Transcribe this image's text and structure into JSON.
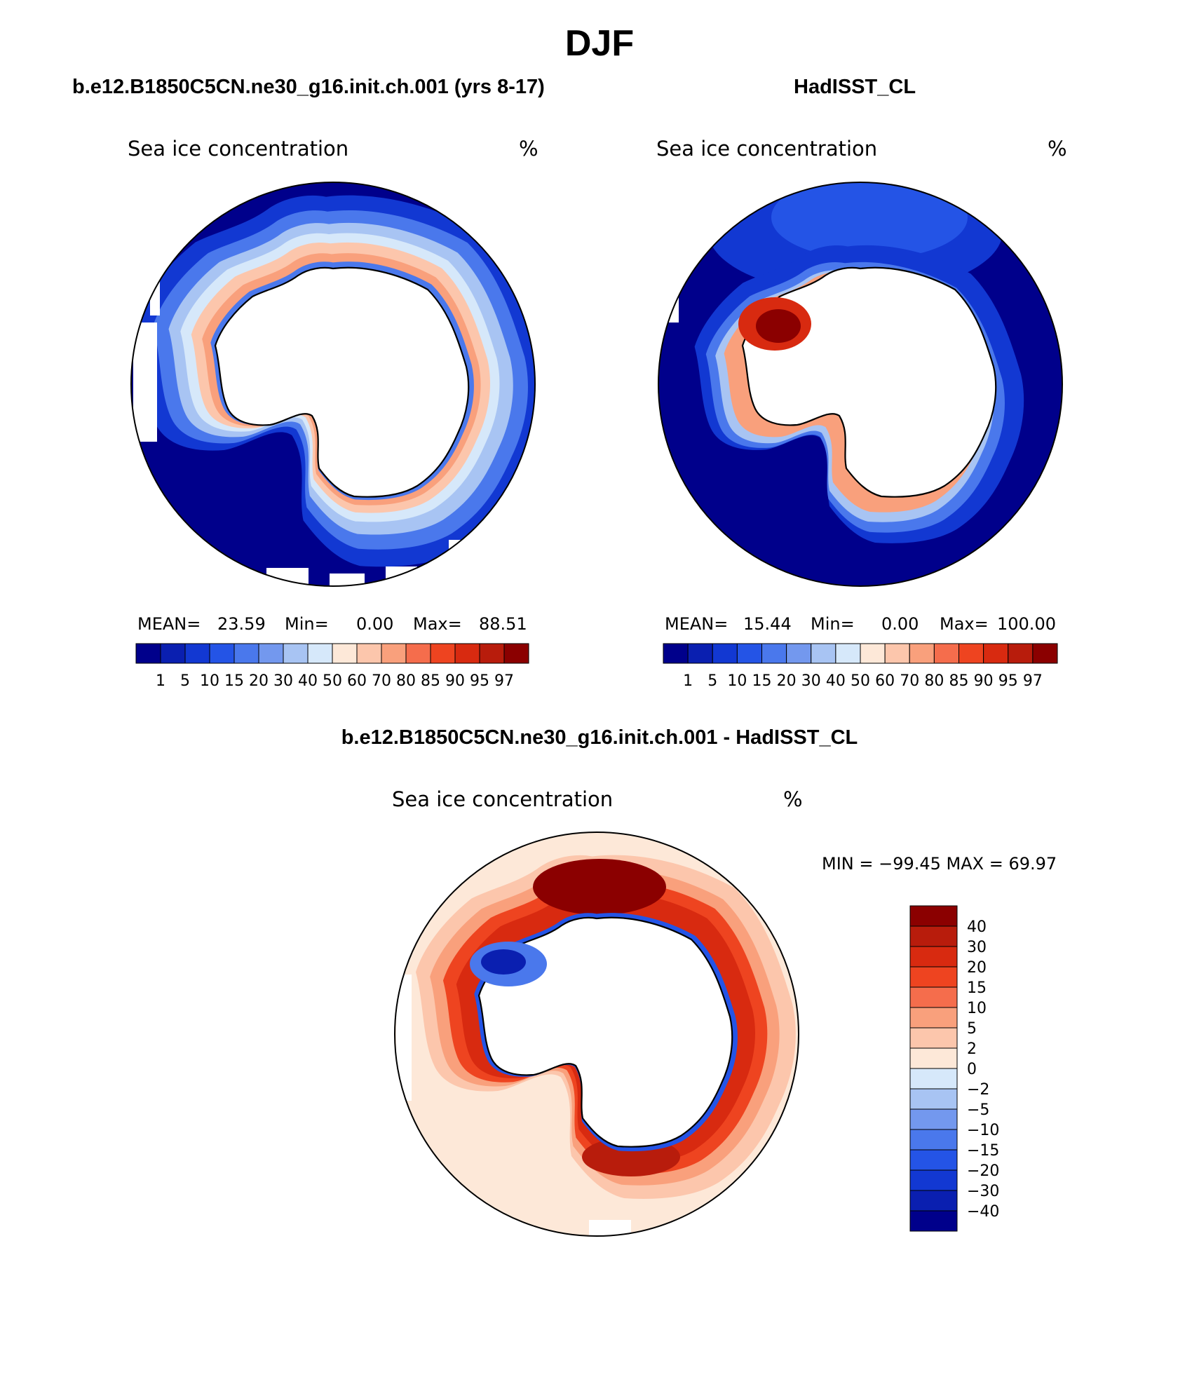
{
  "figure": {
    "season": "DJF",
    "case_title": "b.e12.B1850C5CN.ne30_g16.init.ch.001 (yrs 8-17)",
    "obs_title": "HadISST_CL",
    "diff_title": "b.e12.B1850C5CN.ne30_g16.init.ch.001 - HadISST_CL"
  },
  "panels": {
    "model": {
      "variable": "Sea ice concentration",
      "units": "%",
      "stats": {
        "mean_label": "MEAN=",
        "mean": "23.59",
        "min_label": "Min=",
        "min": "0.00",
        "max_label": "Max=",
        "max": "88.51"
      }
    },
    "obs": {
      "variable": "Sea ice concentration",
      "units": "%",
      "stats": {
        "mean_label": "MEAN=",
        "mean": "15.44",
        "min_label": "Min=",
        "min": "0.00",
        "max_label": "Max=",
        "max": "100.00"
      }
    },
    "diff": {
      "variable": "Sea ice concentration",
      "units": "%",
      "minmax": "MIN = −99.45 MAX =   69.97"
    }
  },
  "colorbars": {
    "concentration": {
      "levels": [
        "1",
        "5",
        "10",
        "15",
        "20",
        "30",
        "40",
        "50",
        "60",
        "70",
        "80",
        "85",
        "90",
        "95",
        "97"
      ],
      "colors": [
        "#00008b",
        "#0a1fb0",
        "#1238d2",
        "#2454e6",
        "#4a78ec",
        "#7398ee",
        "#a8c4f3",
        "#d6e8fa",
        "#fde8d8",
        "#fcc6ac",
        "#f9a07c",
        "#f56d4c",
        "#ee4420",
        "#d82a10",
        "#b81c0c",
        "#8b0000"
      ]
    },
    "difference": {
      "levels": [
        "40",
        "30",
        "20",
        "15",
        "10",
        "5",
        "2",
        "0",
        "−2",
        "−5",
        "−10",
        "−15",
        "−20",
        "−30",
        "−40"
      ],
      "colors": [
        "#8b0000",
        "#b81c0c",
        "#d82a10",
        "#ee4420",
        "#f56d4c",
        "#f9a07c",
        "#fcc6ac",
        "#fde8d8",
        "#d6e8fa",
        "#a8c4f3",
        "#7398ee",
        "#4a78ec",
        "#2454e6",
        "#1238d2",
        "#0a1fb0",
        "#00008b"
      ]
    }
  }
}
